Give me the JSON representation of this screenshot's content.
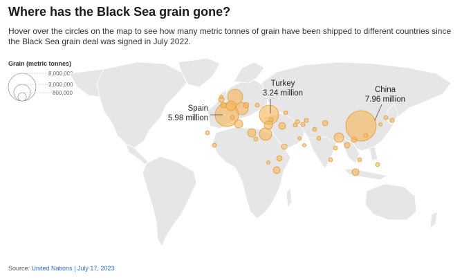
{
  "header": {
    "title": "Where has the Black Sea grain gone?",
    "subtitle": "Hover over the circles on the map to see how many metric tonnes of grain have been shipped to different countries since the Black Sea grain deal was signed in July 2022."
  },
  "legend": {
    "title": "Grain (metric tonnes)",
    "values": [
      "8,000,000",
      "3,000,000",
      "800,000"
    ]
  },
  "callouts": [
    {
      "country": "Spain",
      "value": "5.98 million"
    },
    {
      "country": "Turkey",
      "value": "3.24 million"
    },
    {
      "country": "China",
      "value": "7.96 million"
    }
  ],
  "source": {
    "prefix": "Source: ",
    "link": "United Nations",
    "separator": " | ",
    "date": "July 17, 2023"
  },
  "colors": {
    "land": "#e6e6e6",
    "borders": "#ffffff",
    "bubble_fill": "#f5b45a",
    "bubble_stroke": "#e39a34"
  }
}
